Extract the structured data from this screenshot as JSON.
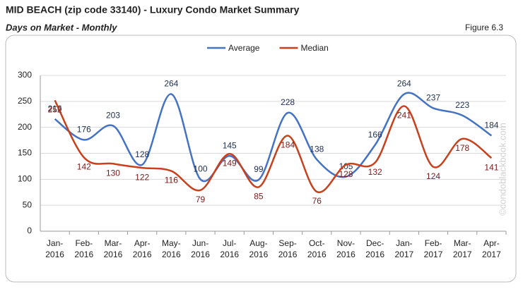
{
  "chart_data": {
    "type": "line",
    "title": "MID BEACH (zip code 33140) - Luxury Condo Market Summary",
    "subtitle": "Days on Market - Monthly",
    "figure_label": "Figure 6.3",
    "watermark": "©condoblackbook.com",
    "categories": [
      "Jan-2016",
      "Feb-2016",
      "Mar-2016",
      "Apr-2016",
      "May-2016",
      "Jun-2016",
      "Jul-2016",
      "Aug-2016",
      "Sep-2016",
      "Oct-2016",
      "Nov-2016",
      "Dec-2016",
      "Jan-2017",
      "Feb-2017",
      "Mar-2017",
      "Apr-2017"
    ],
    "series": [
      {
        "name": "Average",
        "color": "#4472c4",
        "label_color": "#1f2f4f",
        "values": [
          216,
          176,
          203,
          128,
          264,
          100,
          145,
          99,
          228,
          138,
          105,
          166,
          264,
          237,
          223,
          184
        ]
      },
      {
        "name": "Median",
        "color": "#c8401c",
        "label_color": "#7a1a1a",
        "values": [
          252,
          142,
          130,
          122,
          116,
          79,
          149,
          85,
          184,
          76,
          128,
          132,
          241,
          124,
          178,
          141
        ]
      }
    ],
    "ylim": [
      0,
      300
    ],
    "yticks": [
      0,
      50,
      100,
      150,
      200,
      250,
      300
    ],
    "grid": true,
    "smooth": true,
    "legend": "top"
  }
}
